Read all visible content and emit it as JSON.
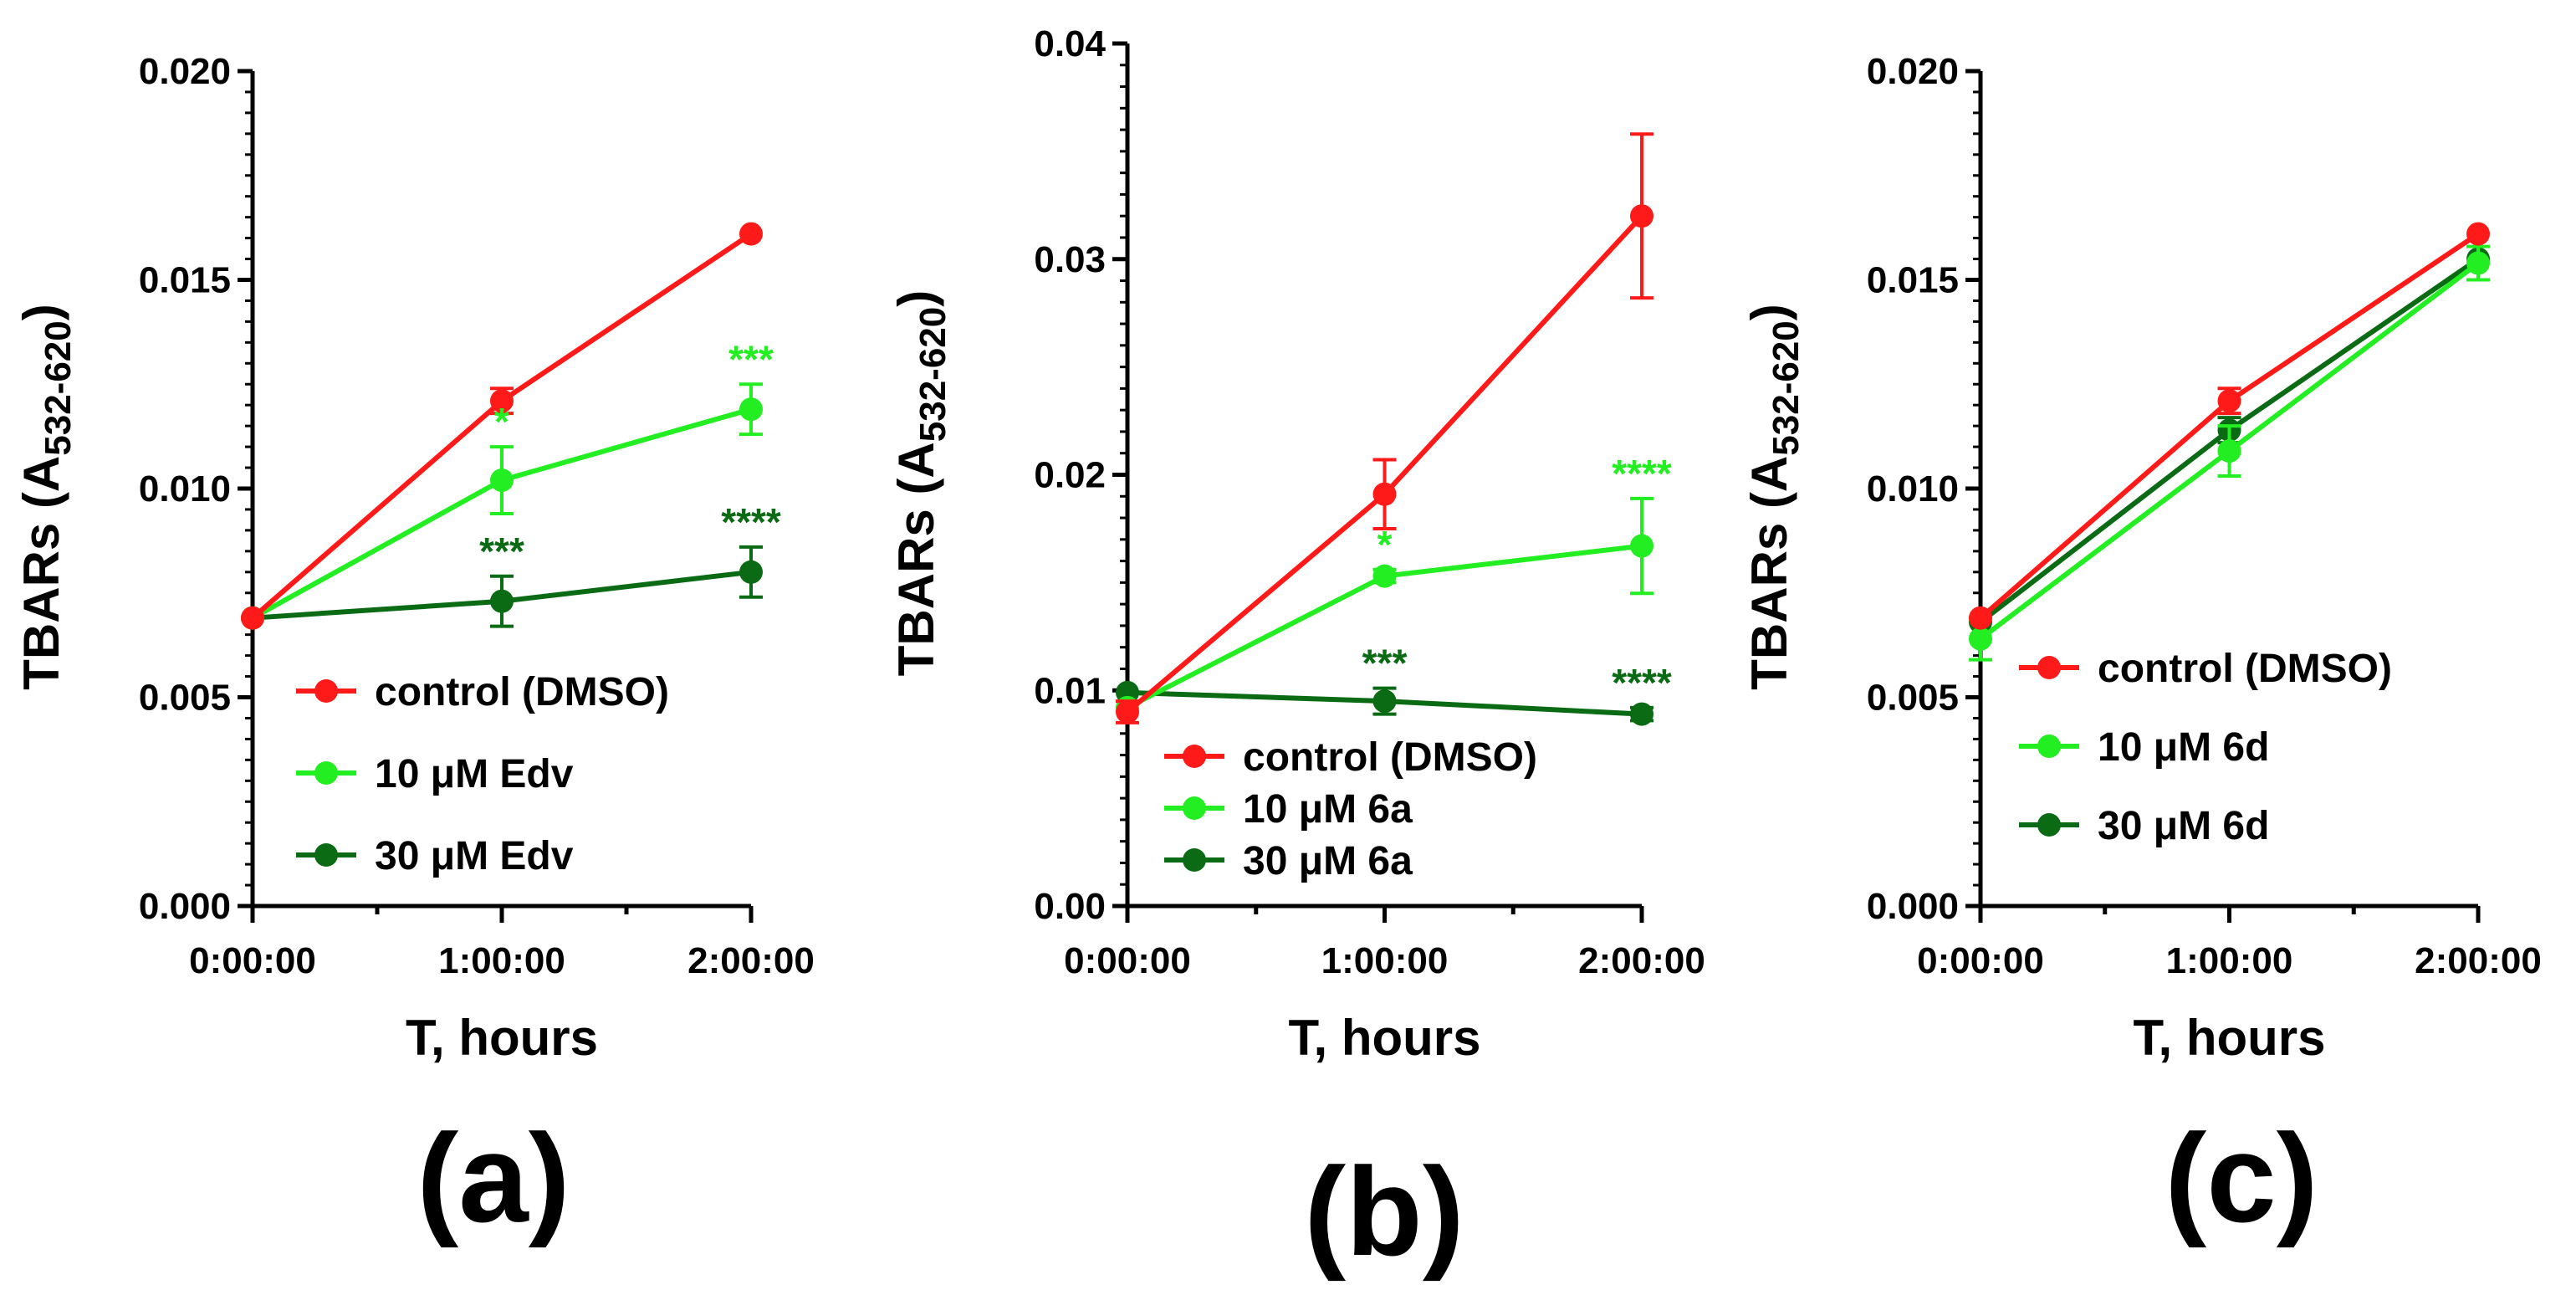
{
  "colors": {
    "control": "#ff1a1a",
    "low": "#22ee22",
    "high": "#0a6b14",
    "axis": "#000000"
  },
  "chart_data": [
    {
      "type": "line",
      "panel_label": "(a)",
      "xlabel": "T, hours",
      "ylabel": "TBARs (A532-620)",
      "ylabel_main": "TBARs (A",
      "ylabel_sub": "532-620",
      "ylabel_close": ")",
      "x": [
        "0:00:00",
        "1:00:00",
        "2:00:00"
      ],
      "ylim": [
        0,
        0.02
      ],
      "yticks": [
        "0.000",
        "0.005",
        "0.010",
        "0.015",
        "0.020"
      ],
      "legend_position": "bottom-right",
      "series": [
        {
          "name": "control (DMSO)",
          "color_key": "control",
          "values": [
            0.0069,
            0.0121,
            0.0161
          ],
          "errors": [
            0,
            0.0003,
            0
          ]
        },
        {
          "name": "10 μM Edv",
          "color_key": "low",
          "values": [
            0.0069,
            0.0102,
            0.0119
          ],
          "errors": [
            0,
            0.0008,
            0.0006
          ]
        },
        {
          "name": "30 μM Edv",
          "color_key": "high",
          "values": [
            0.0069,
            0.0073,
            0.008
          ],
          "errors": [
            0,
            0.0006,
            0.0006
          ]
        }
      ],
      "annotations": [
        {
          "text": "*",
          "series": 1,
          "index": 1,
          "color_key": "low"
        },
        {
          "text": "***",
          "series": 1,
          "index": 2,
          "color_key": "low"
        },
        {
          "text": "***",
          "series": 2,
          "index": 1,
          "color_key": "high"
        },
        {
          "text": "****",
          "series": 2,
          "index": 2,
          "color_key": "high"
        }
      ]
    },
    {
      "type": "line",
      "panel_label": "(b)",
      "xlabel": "T, hours",
      "ylabel": "TBARs (A532-620)",
      "ylabel_main": "TBARs (A",
      "ylabel_sub": "532-620",
      "ylabel_close": ")",
      "x": [
        "0:00:00",
        "1:00:00",
        "2:00:00"
      ],
      "ylim": [
        0,
        0.04
      ],
      "yticks": [
        "0.00",
        "0.01",
        "0.02",
        "0.03",
        "0.04"
      ],
      "legend_position": "bottom-left",
      "series": [
        {
          "name": "control (DMSO)",
          "color_key": "control",
          "values": [
            0.009,
            0.0191,
            0.032
          ],
          "errors": [
            0.0005,
            0.0016,
            0.0038
          ]
        },
        {
          "name": "10 μM 6a",
          "color_key": "low",
          "values": [
            0.0092,
            0.0153,
            0.0167
          ],
          "errors": [
            0,
            0.0003,
            0.0022
          ]
        },
        {
          "name": "30 μM 6a",
          "color_key": "high",
          "values": [
            0.0099,
            0.0095,
            0.0089
          ],
          "errors": [
            0,
            0.0006,
            0.0003
          ]
        }
      ],
      "annotations": [
        {
          "text": "*",
          "series": 1,
          "index": 1,
          "color_key": "low"
        },
        {
          "text": "****",
          "series": 1,
          "index": 2,
          "color_key": "low"
        },
        {
          "text": "***",
          "series": 2,
          "index": 1,
          "color_key": "high"
        },
        {
          "text": "****",
          "series": 2,
          "index": 2,
          "color_key": "high"
        }
      ]
    },
    {
      "type": "line",
      "panel_label": "(c)",
      "xlabel": "T, hours",
      "ylabel": "TBARs (A532-620)",
      "ylabel_main": "TBARs (A",
      "ylabel_sub": "532-620",
      "ylabel_close": ")",
      "x": [
        "0:00:00",
        "1:00:00",
        "2:00:00"
      ],
      "ylim": [
        0,
        0.02
      ],
      "yticks": [
        "0.000",
        "0.005",
        "0.010",
        "0.015",
        "0.020"
      ],
      "legend_position": "bottom-right",
      "series": [
        {
          "name": "control (DMSO)",
          "color_key": "control",
          "values": [
            0.0069,
            0.0121,
            0.0161
          ],
          "errors": [
            0,
            0.0003,
            0
          ]
        },
        {
          "name": "10 μM 6d",
          "color_key": "low",
          "values": [
            0.0064,
            0.0109,
            0.0154
          ],
          "errors": [
            0.0005,
            0.0006,
            0.0004
          ]
        },
        {
          "name": "30 μM 6d",
          "color_key": "high",
          "values": [
            0.0068,
            0.0114,
            0.0155
          ],
          "errors": [
            0,
            0.0003,
            0
          ]
        }
      ],
      "annotations": []
    }
  ]
}
